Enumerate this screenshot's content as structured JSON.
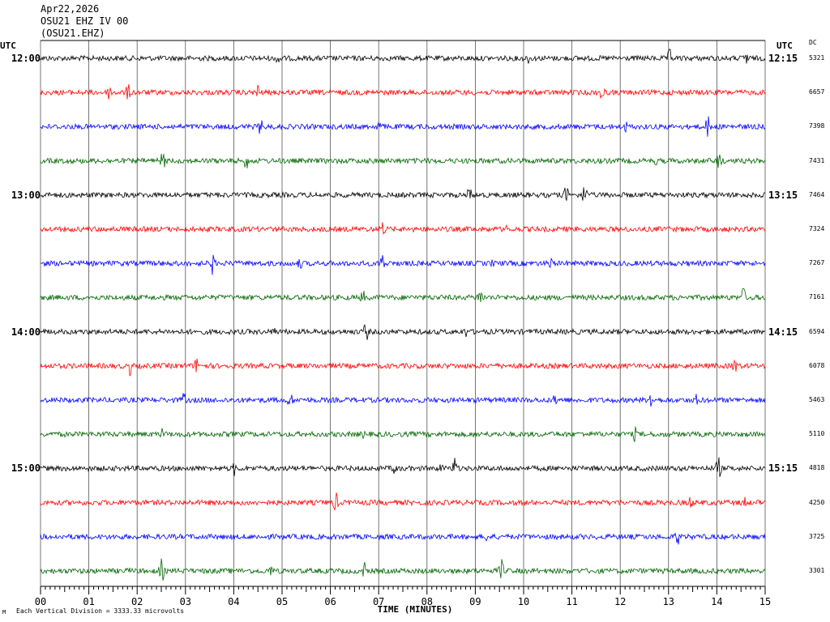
{
  "header": {
    "date": "Apr22,2026",
    "station": "OSU21 EHZ IV 00",
    "channel": "(OSU21.EHZ)"
  },
  "left_axis_label": "UTC",
  "right_axis_label": "UTC",
  "dc_label": "DC",
  "footer": {
    "xlabel": "TIME (MINUTES)",
    "scale_note": "Each Vertical Division = 3333.33 microvolts",
    "corner_mark": "M"
  },
  "trace_colors": [
    "#000000",
    "#ff0000",
    "#0000ff",
    "#006400"
  ],
  "chart_data": {
    "type": "line",
    "xlabel": "TIME (MINUTES)",
    "x_ticks": [
      "00",
      "01",
      "02",
      "03",
      "04",
      "05",
      "06",
      "07",
      "08",
      "09",
      "10",
      "11",
      "12",
      "13",
      "14",
      "15"
    ],
    "xlim": [
      0,
      15
    ],
    "left_time_labels": [
      "12:00",
      "13:00",
      "14:00",
      "15:00"
    ],
    "right_time_labels": [
      "12:15",
      "13:15",
      "14:15",
      "15:15"
    ],
    "rows": [
      {
        "dc": "5321",
        "color": "black"
      },
      {
        "dc": "6657",
        "color": "red"
      },
      {
        "dc": "7398",
        "color": "blue"
      },
      {
        "dc": "7431",
        "color": "green"
      },
      {
        "dc": "7464",
        "color": "black"
      },
      {
        "dc": "7324",
        "color": "red"
      },
      {
        "dc": "7267",
        "color": "blue"
      },
      {
        "dc": "7161",
        "color": "green"
      },
      {
        "dc": "6594",
        "color": "black"
      },
      {
        "dc": "6078",
        "color": "red"
      },
      {
        "dc": "5463",
        "color": "blue"
      },
      {
        "dc": "5110",
        "color": "green"
      },
      {
        "dc": "4818",
        "color": "black"
      },
      {
        "dc": "4250",
        "color": "red"
      },
      {
        "dc": "3725",
        "color": "blue"
      },
      {
        "dc": "3301",
        "color": "green"
      }
    ]
  }
}
